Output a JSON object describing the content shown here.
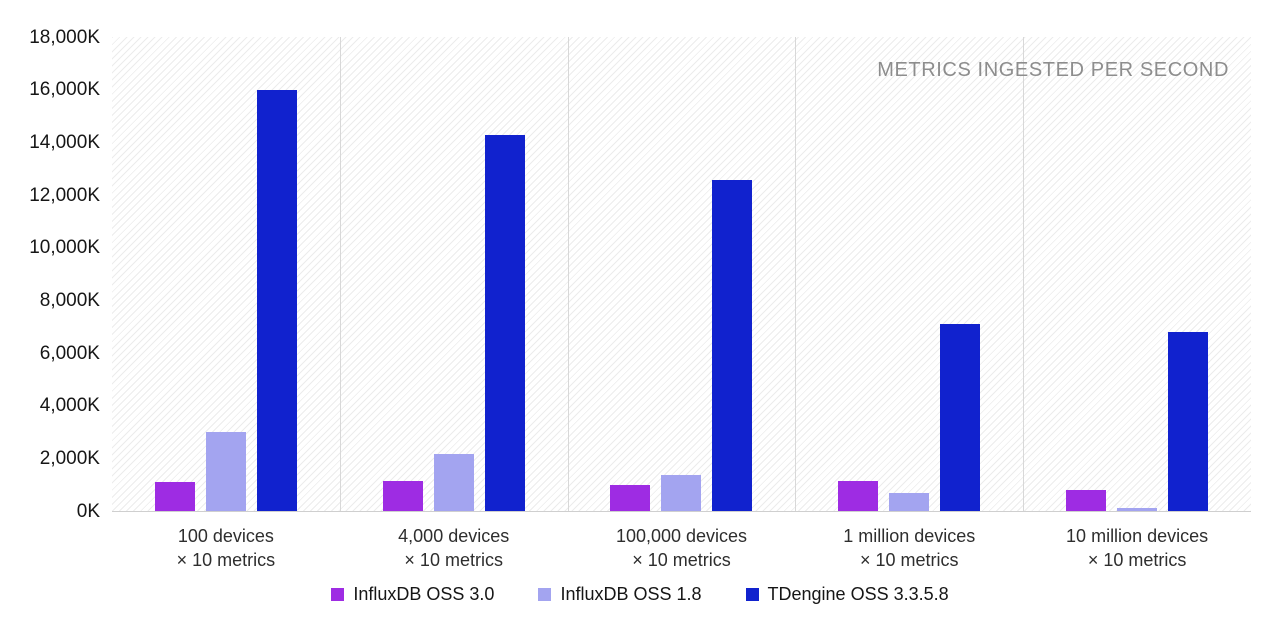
{
  "chart_data": {
    "type": "bar",
    "title": "METRICS INGESTED PER SECOND",
    "xlabel": "",
    "ylabel": "",
    "unit": "K (thousands of metrics per second)",
    "ylim": [
      0,
      18000
    ],
    "ytick_step": 2000,
    "ytick_labels": [
      "0K",
      "2,000K",
      "4,000K",
      "6,000K",
      "8,000K",
      "10,000K",
      "12,000K",
      "14,000K",
      "16,000K",
      "18,000K"
    ],
    "grid": "vertical panel dividers between categories, hatched plot background",
    "legend_position": "bottom-center",
    "categories": [
      [
        "100 devices",
        "× 10 metrics"
      ],
      [
        "4,000 devices",
        "× 10 metrics"
      ],
      [
        "100,000 devices",
        "× 10 metrics"
      ],
      [
        "1 million devices",
        "× 10 metrics"
      ],
      [
        "10 million devices",
        "× 10 metrics"
      ]
    ],
    "series": [
      {
        "name": "InfluxDB OSS 3.0",
        "color": "#9E2CE3",
        "values": [
          1100,
          1150,
          1000,
          1150,
          800
        ]
      },
      {
        "name": "InfluxDB OSS 1.8",
        "color": "#A3A4F0",
        "values": [
          3000,
          2150,
          1380,
          700,
          110
        ]
      },
      {
        "name": "TDengine OSS 3.3.5.8",
        "color": "#1122CE",
        "values": [
          16000,
          14280,
          12570,
          7100,
          6800
        ]
      }
    ],
    "colors": {
      "title_text": "#8d8d8d",
      "axis_text": "#161616",
      "category_text": "#2e2e2e",
      "gridline": "#d8d8d8",
      "hatch_line": "#ececec",
      "axis_baseline": "#cfcfcf"
    }
  }
}
